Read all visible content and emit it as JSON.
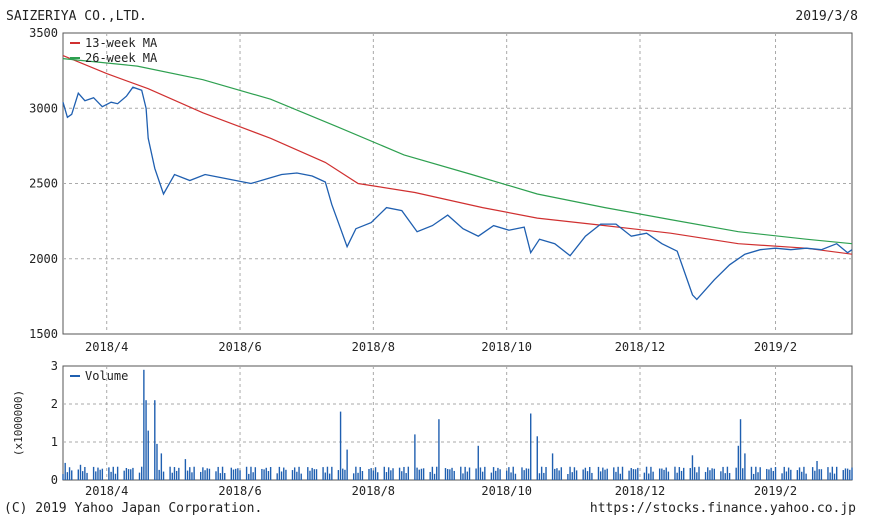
{
  "header": {
    "company": "SAIZERIYA CO.,LTD.",
    "date": "2019/3/8"
  },
  "footer": {
    "copyright": "(C) 2019 Yahoo Japan Corporation.",
    "url": "https://stocks.finance.yahoo.co.jp"
  },
  "chart_data": [
    {
      "type": "line",
      "ylim": [
        1500,
        3500
      ],
      "yticks": [
        1500,
        2000,
        2500,
        3000,
        3500
      ],
      "xticks": [
        "2018/4",
        "2018/6",
        "2018/8",
        "2018/10",
        "2018/12",
        "2019/2"
      ],
      "xrange": [
        "2018/3/12",
        "2019/3/8"
      ],
      "grid": true,
      "legend_position": "top-left",
      "series": [
        {
          "name": "",
          "color": "#1f5fb0",
          "points": [
            [
              "2018/3/12",
              3040
            ],
            [
              "2018/3/14",
              2940
            ],
            [
              "2018/3/16",
              2960
            ],
            [
              "2018/3/19",
              3100
            ],
            [
              "2018/3/22",
              3050
            ],
            [
              "2018/3/26",
              3070
            ],
            [
              "2018/3/30",
              3010
            ],
            [
              "2018/4/3",
              3040
            ],
            [
              "2018/4/6",
              3030
            ],
            [
              "2018/4/10",
              3080
            ],
            [
              "2018/4/13",
              3140
            ],
            [
              "2018/4/17",
              3120
            ],
            [
              "2018/4/19",
              3000
            ],
            [
              "2018/4/20",
              2800
            ],
            [
              "2018/4/23",
              2600
            ],
            [
              "2018/4/27",
              2430
            ],
            [
              "2018/5/2",
              2560
            ],
            [
              "2018/5/9",
              2520
            ],
            [
              "2018/5/16",
              2560
            ],
            [
              "2018/5/23",
              2540
            ],
            [
              "2018/5/30",
              2520
            ],
            [
              "2018/6/6",
              2500
            ],
            [
              "2018/6/13",
              2530
            ],
            [
              "2018/6/20",
              2560
            ],
            [
              "2018/6/27",
              2570
            ],
            [
              "2018/7/4",
              2550
            ],
            [
              "2018/7/10",
              2510
            ],
            [
              "2018/7/13",
              2360
            ],
            [
              "2018/7/17",
              2200
            ],
            [
              "2018/7/20",
              2080
            ],
            [
              "2018/7/24",
              2200
            ],
            [
              "2018/7/31",
              2240
            ],
            [
              "2018/8/7",
              2340
            ],
            [
              "2018/8/14",
              2320
            ],
            [
              "2018/8/21",
              2180
            ],
            [
              "2018/8/28",
              2220
            ],
            [
              "2018/9/4",
              2290
            ],
            [
              "2018/9/11",
              2200
            ],
            [
              "2018/9/18",
              2150
            ],
            [
              "2018/9/25",
              2220
            ],
            [
              "2018/10/2",
              2190
            ],
            [
              "2018/10/9",
              2210
            ],
            [
              "2018/10/12",
              2040
            ],
            [
              "2018/10/16",
              2130
            ],
            [
              "2018/10/23",
              2100
            ],
            [
              "2018/10/30",
              2020
            ],
            [
              "2018/11/6",
              2150
            ],
            [
              "2018/11/13",
              2230
            ],
            [
              "2018/11/20",
              2230
            ],
            [
              "2018/11/27",
              2150
            ],
            [
              "2018/12/4",
              2170
            ],
            [
              "2018/12/11",
              2100
            ],
            [
              "2018/12/18",
              2050
            ],
            [
              "2018/12/25",
              1760
            ],
            [
              "2018/12/27",
              1730
            ],
            [
              "2019/1/4",
              1860
            ],
            [
              "2019/1/11",
              1960
            ],
            [
              "2019/1/18",
              2030
            ],
            [
              "2019/1/25",
              2060
            ],
            [
              "2019/2/1",
              2070
            ],
            [
              "2019/2/8",
              2060
            ],
            [
              "2019/2/15",
              2070
            ],
            [
              "2019/2/22",
              2060
            ],
            [
              "2019/3/1",
              2100
            ],
            [
              "2019/3/6",
              2040
            ],
            [
              "2019/3/8",
              2060
            ]
          ]
        },
        {
          "name": "13-week MA",
          "color": "#d03030",
          "points": [
            [
              "2018/3/12",
              3350
            ],
            [
              "2018/4/1",
              3230
            ],
            [
              "2018/4/20",
              3130
            ],
            [
              "2018/5/15",
              2970
            ],
            [
              "2018/6/15",
              2800
            ],
            [
              "2018/7/10",
              2640
            ],
            [
              "2018/7/25",
              2500
            ],
            [
              "2018/8/20",
              2440
            ],
            [
              "2018/9/20",
              2340
            ],
            [
              "2018/10/15",
              2270
            ],
            [
              "2018/11/15",
              2220
            ],
            [
              "2018/12/15",
              2170
            ],
            [
              "2019/1/15",
              2100
            ],
            [
              "2019/2/15",
              2070
            ],
            [
              "2019/3/8",
              2030
            ]
          ]
        },
        {
          "name": "26-week MA",
          "color": "#2ea050",
          "points": [
            [
              "2018/3/12",
              3330
            ],
            [
              "2018/4/15",
              3280
            ],
            [
              "2018/5/15",
              3190
            ],
            [
              "2018/6/15",
              3060
            ],
            [
              "2018/7/15",
              2880
            ],
            [
              "2018/8/15",
              2690
            ],
            [
              "2018/9/15",
              2560
            ],
            [
              "2018/10/15",
              2430
            ],
            [
              "2018/11/15",
              2340
            ],
            [
              "2018/12/15",
              2260
            ],
            [
              "2019/1/15",
              2180
            ],
            [
              "2019/2/15",
              2130
            ],
            [
              "2019/3/8",
              2100
            ]
          ]
        }
      ]
    },
    {
      "type": "bar",
      "ylim": [
        0,
        3
      ],
      "yticks": [
        0,
        1,
        2,
        3
      ],
      "ylabel": "(x1000000)",
      "xticks": [
        "2018/4",
        "2018/6",
        "2018/8",
        "2018/10",
        "2018/12",
        "2019/2"
      ],
      "legend_position": "top-left",
      "series": [
        {
          "name": "Volume",
          "color": "#1f5fb0",
          "baseline": 0.35,
          "spikes": [
            [
              "2018/3/13",
              0.45
            ],
            [
              "2018/3/20",
              0.4
            ],
            [
              "2018/4/18",
              2.9
            ],
            [
              "2018/4/19",
              2.1
            ],
            [
              "2018/4/20",
              1.3
            ],
            [
              "2018/4/23",
              2.1
            ],
            [
              "2018/4/24",
              0.95
            ],
            [
              "2018/4/26",
              0.7
            ],
            [
              "2018/5/7",
              0.55
            ],
            [
              "2018/7/17",
              1.8
            ],
            [
              "2018/7/20",
              0.8
            ],
            [
              "2018/8/20",
              1.2
            ],
            [
              "2018/8/31",
              1.6
            ],
            [
              "2018/9/18",
              0.9
            ],
            [
              "2018/10/12",
              1.75
            ],
            [
              "2018/10/15",
              1.15
            ],
            [
              "2018/10/22",
              0.7
            ],
            [
              "2018/12/25",
              0.65
            ],
            [
              "2019/1/15",
              0.9
            ],
            [
              "2019/1/16",
              1.6
            ],
            [
              "2019/1/18",
              0.7
            ],
            [
              "2019/2/20",
              0.5
            ]
          ]
        }
      ]
    }
  ]
}
